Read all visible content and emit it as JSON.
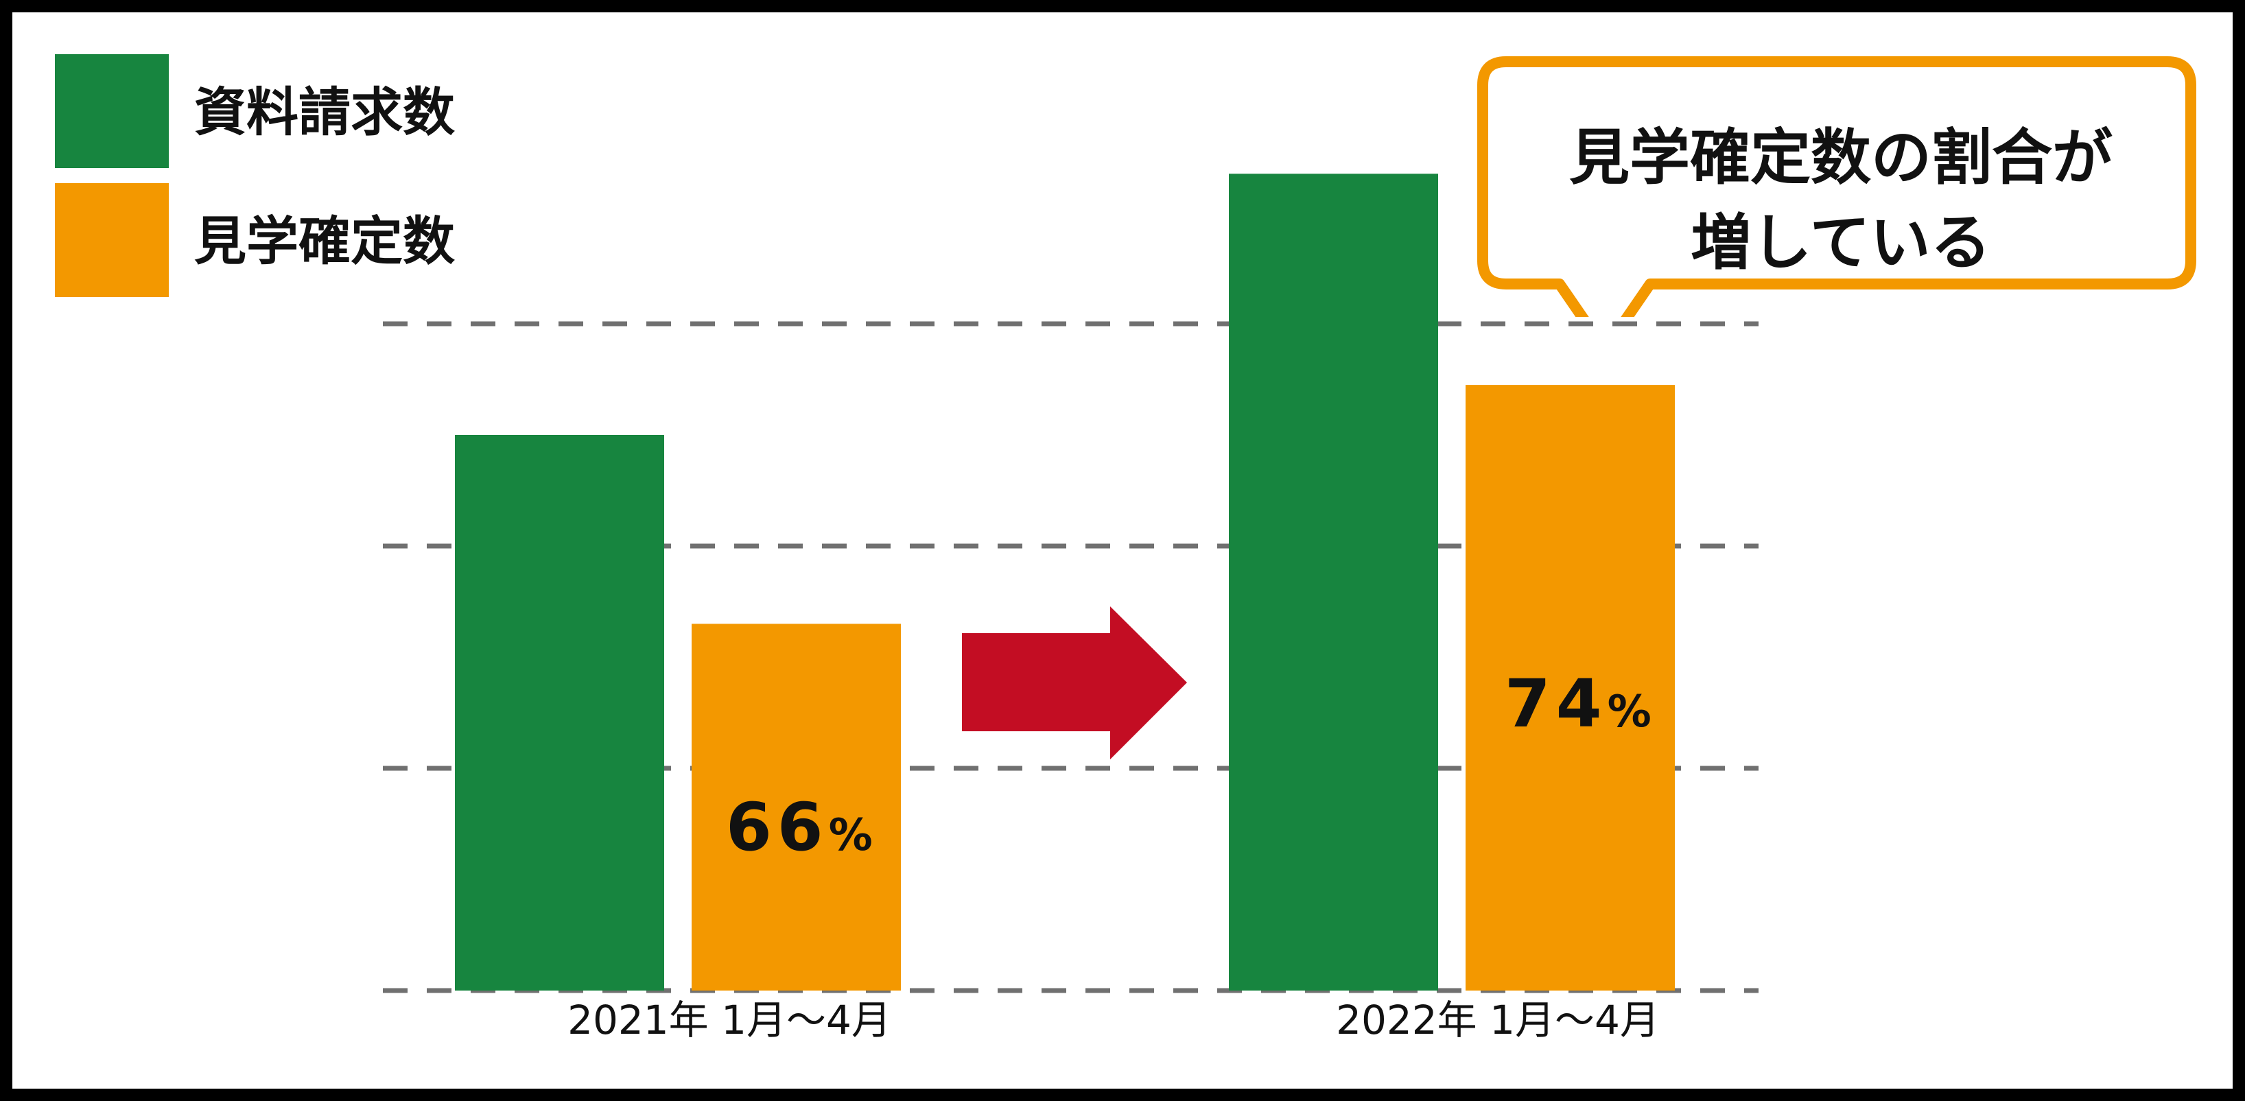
{
  "colors": {
    "request": "#17853f",
    "visit": "#f39800",
    "arrow": "#c30d23",
    "grid": "#707070",
    "callout_border": "#f39800"
  },
  "legend": [
    {
      "label": "資料請求数",
      "color": "#17853f"
    },
    {
      "label": "見学確定数",
      "color": "#f39800"
    }
  ],
  "callout": {
    "line1": "見学確定数の割合が",
    "line2": "増している"
  },
  "chart_data": {
    "type": "bar",
    "categories": [
      "2021年 1月～4月",
      "2022年 1月～4月"
    ],
    "series": [
      {
        "name": "資料請求数",
        "values": [
          100,
          147
        ]
      },
      {
        "name": "見学確定数",
        "values": [
          66,
          109
        ]
      }
    ],
    "data_labels": [
      {
        "category": "2021年 1月～4月",
        "series": "見学確定数",
        "value": "66",
        "unit": "%"
      },
      {
        "category": "2022年 1月～4月",
        "series": "見学確定数",
        "value": "74",
        "unit": "%"
      }
    ],
    "ylim": [
      0,
      150
    ],
    "gridlines": [
      0,
      40,
      80,
      120
    ],
    "grid": true,
    "y_axis_labels": false,
    "legend_position": "top-left",
    "annotation": "arrow-right"
  }
}
